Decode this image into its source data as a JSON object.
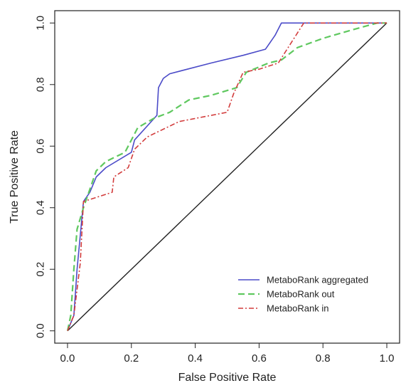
{
  "chart_data": {
    "type": "line",
    "title": "",
    "xlabel": "False Positive Rate",
    "ylabel": "True Positive Rate",
    "xlim": [
      -0.04,
      1.04
    ],
    "ylim": [
      -0.04,
      1.04
    ],
    "xticks": [
      "0.0",
      "0.2",
      "0.4",
      "0.6",
      "0.8",
      "1.0"
    ],
    "yticks": [
      "0.0",
      "0.2",
      "0.4",
      "0.6",
      "0.8",
      "1.0"
    ],
    "grid": false,
    "legend_position": "bottom-right",
    "diagonal": {
      "color": "#222222",
      "x": [
        0,
        1
      ],
      "y": [
        0,
        1
      ]
    },
    "series": [
      {
        "name": "MetaboRank aggregated",
        "color": "#4b4bc8",
        "dash": "solid",
        "x": [
          0,
          0.02,
          0.03,
          0.05,
          0.07,
          0.09,
          0.12,
          0.2,
          0.21,
          0.28,
          0.285,
          0.3,
          0.32,
          0.45,
          0.55,
          0.62,
          0.65,
          0.67,
          0.75,
          1.0
        ],
        "y": [
          0,
          0.05,
          0.2,
          0.42,
          0.45,
          0.5,
          0.53,
          0.58,
          0.62,
          0.7,
          0.79,
          0.82,
          0.835,
          0.87,
          0.895,
          0.915,
          0.96,
          1.0,
          1.0,
          1.0
        ]
      },
      {
        "name": "MetaboRank out",
        "color": "#5fc85f",
        "dash": "dashed",
        "x": [
          0,
          0.01,
          0.02,
          0.03,
          0.05,
          0.07,
          0.09,
          0.12,
          0.18,
          0.22,
          0.27,
          0.32,
          0.38,
          0.45,
          0.53,
          0.56,
          0.63,
          0.67,
          0.72,
          0.8,
          0.9,
          0.97,
          1.0
        ],
        "y": [
          0,
          0.05,
          0.2,
          0.33,
          0.4,
          0.46,
          0.52,
          0.55,
          0.58,
          0.66,
          0.69,
          0.71,
          0.75,
          0.765,
          0.79,
          0.84,
          0.87,
          0.88,
          0.92,
          0.95,
          0.98,
          1.0,
          1.0
        ]
      },
      {
        "name": "MetaboRank in",
        "color": "#d23c3c",
        "dash": "dashdot",
        "x": [
          0,
          0.02,
          0.04,
          0.05,
          0.14,
          0.145,
          0.19,
          0.21,
          0.25,
          0.35,
          0.5,
          0.52,
          0.55,
          0.6,
          0.66,
          0.74,
          1.0
        ],
        "y": [
          0,
          0.05,
          0.22,
          0.42,
          0.45,
          0.5,
          0.53,
          0.59,
          0.63,
          0.68,
          0.71,
          0.77,
          0.84,
          0.85,
          0.87,
          1.0,
          1.0
        ]
      }
    ]
  }
}
